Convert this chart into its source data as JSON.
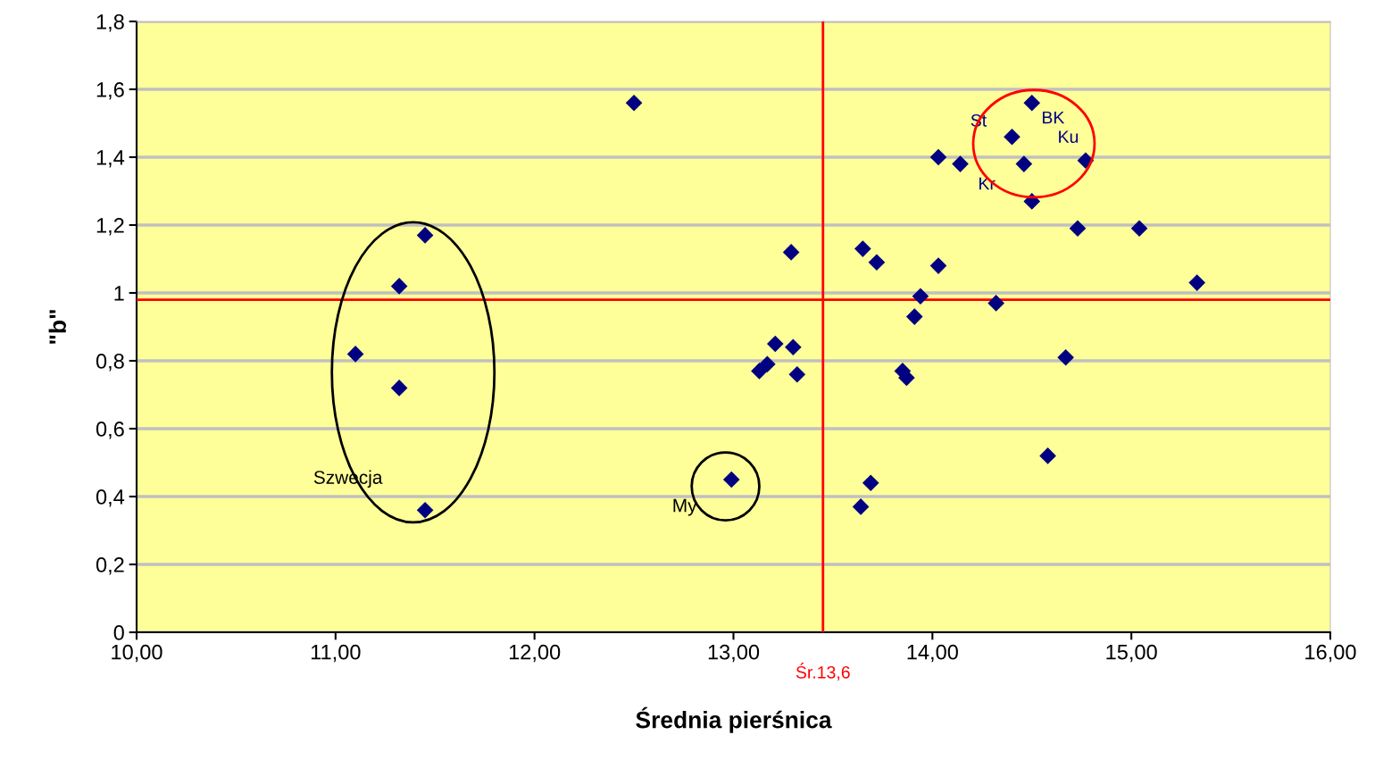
{
  "chart_data": {
    "type": "scatter",
    "xlabel": "Średnia pierśnica",
    "ylabel": "\"b\"",
    "series": [
      {
        "color": "#000080",
        "x": [
          11.1,
          11.32,
          11.45,
          11.32,
          11.45,
          12.5,
          13.29,
          13.21,
          13.3,
          13.13,
          13.17,
          13.32,
          12.99,
          13.65,
          13.72,
          13.69,
          13.64,
          14.03,
          14.14,
          14.03,
          13.94,
          13.91,
          13.85,
          13.87,
          14.4,
          14.5,
          14.46,
          14.77,
          14.5,
          14.73,
          15.04,
          15.33,
          14.32,
          14.67,
          14.58
        ],
        "values": [
          0.82,
          1.02,
          1.17,
          0.72,
          0.36,
          1.56,
          1.12,
          0.85,
          0.84,
          0.77,
          0.79,
          0.76,
          0.45,
          1.13,
          1.09,
          0.44,
          0.37,
          1.4,
          1.38,
          1.08,
          0.99,
          0.93,
          0.77,
          0.75,
          1.46,
          1.56,
          1.38,
          1.39,
          1.27,
          1.19,
          1.19,
          1.03,
          0.97,
          0.81,
          0.52
        ]
      }
    ],
    "marker": "diamond",
    "grid": "y",
    "xlim": [
      10,
      16
    ],
    "xticks": [
      {
        "value": 10,
        "label": "10,00"
      },
      {
        "value": 11,
        "label": "11,00"
      },
      {
        "value": 12,
        "label": "12,00"
      },
      {
        "value": 13,
        "label": "13,00"
      },
      {
        "value": 14,
        "label": "14,00"
      },
      {
        "value": 15,
        "label": "15,00"
      },
      {
        "value": 16,
        "label": "16,00"
      }
    ],
    "ylim": [
      0,
      1.8
    ],
    "yticks": [
      0,
      {
        "value": 0.2,
        "label": "0,2"
      },
      {
        "value": 0.4,
        "label": "0,4"
      },
      {
        "value": 0.6,
        "label": "0,6"
      },
      {
        "value": 0.8,
        "label": "0,8"
      },
      1,
      {
        "value": 1.2,
        "label": "1,2"
      },
      {
        "value": 1.4,
        "label": "1,4"
      },
      {
        "value": 1.6,
        "label": "1,6"
      },
      {
        "value": 1.8,
        "label": "1,8"
      }
    ],
    "ref_lines": [
      {
        "axis": "x",
        "value": 13.45,
        "label": "Śr.13,6",
        "color": "#ff0000"
      },
      {
        "axis": "y",
        "value": 0.98,
        "color": "#ff0000"
      }
    ],
    "annotations": [
      "Szwecja",
      "My",
      {
        "text": "St",
        "x": 14.4,
        "y": 1.46
      },
      {
        "text": "BK",
        "x": 14.5,
        "y": 1.56
      },
      {
        "text": "Ku",
        "x": 14.77,
        "y": 1.39
      },
      {
        "text": "Kr",
        "x": 14.46,
        "y": 1.38
      }
    ]
  }
}
